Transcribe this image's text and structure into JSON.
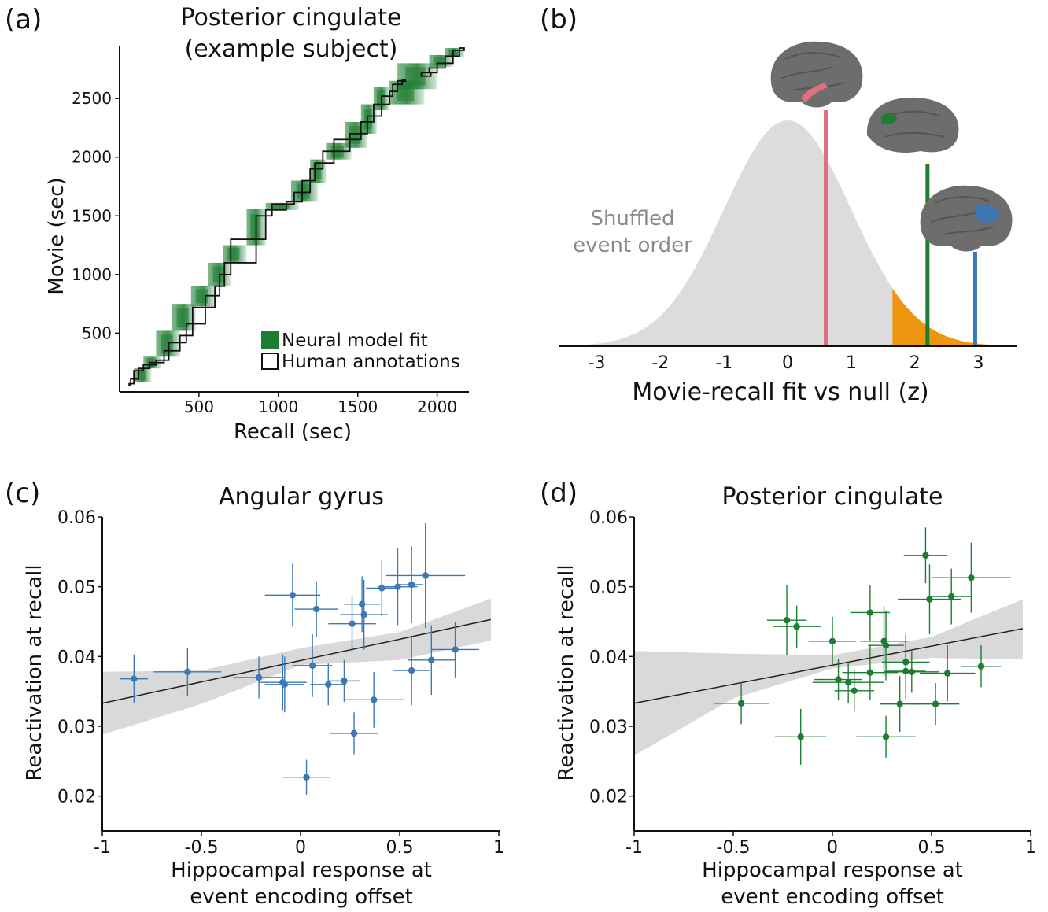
{
  "colors": {
    "green": "#1e7d32",
    "green_light": "#2e9e4a",
    "blue": "#3d78b5",
    "pink": "#e07082",
    "orange": "#f0950f",
    "gray_fill": "#dcdcdc",
    "brain": "#6d6d6d"
  },
  "chart_data": [
    {
      "id": "a",
      "panel_label": "(a)",
      "type": "heatmap",
      "title_line1": "Posterior cingulate",
      "title_line2": "(example subject)",
      "xlabel": "Recall (sec)",
      "ylabel": "Movie (sec)",
      "xlim": [
        0,
        2200
      ],
      "ylim": [
        0,
        2950
      ],
      "xticks": [
        500,
        1000,
        1500,
        2000
      ],
      "xtick_labels": [
        "500",
        "1000",
        "1500",
        "2000"
      ],
      "yticks": [
        500,
        1000,
        1500,
        2000,
        2500
      ],
      "ytick_labels": [
        "500",
        "1000",
        "1500",
        "2000",
        "2500"
      ],
      "legend": [
        "Neural model fit",
        "Human annotations"
      ],
      "legend_position": "bottom-right",
      "annotation_boxes": [
        [
          60,
          60,
          70,
          70
        ],
        [
          70,
          70,
          90,
          110
        ],
        [
          90,
          110,
          120,
          180
        ],
        [
          120,
          180,
          150,
          200
        ],
        [
          150,
          200,
          190,
          230
        ],
        [
          190,
          230,
          230,
          250
        ],
        [
          230,
          250,
          280,
          270
        ],
        [
          280,
          270,
          310,
          350
        ],
        [
          310,
          350,
          380,
          420
        ],
        [
          380,
          420,
          420,
          480
        ],
        [
          420,
          480,
          460,
          580
        ],
        [
          460,
          580,
          540,
          720
        ],
        [
          540,
          720,
          600,
          820
        ],
        [
          600,
          820,
          630,
          900
        ],
        [
          630,
          900,
          660,
          1000
        ],
        [
          660,
          1000,
          700,
          1100
        ],
        [
          700,
          1100,
          860,
          1300
        ],
        [
          860,
          1300,
          920,
          1500
        ],
        [
          920,
          1500,
          960,
          1550
        ],
        [
          960,
          1550,
          1050,
          1600
        ],
        [
          1050,
          1600,
          1100,
          1620
        ],
        [
          1100,
          1620,
          1150,
          1700
        ],
        [
          1150,
          1700,
          1200,
          1800
        ],
        [
          1200,
          1800,
          1230,
          1900
        ],
        [
          1230,
          1900,
          1280,
          1950
        ],
        [
          1280,
          1950,
          1350,
          2050
        ],
        [
          1350,
          2050,
          1450,
          2150
        ],
        [
          1450,
          2150,
          1520,
          2200
        ],
        [
          1520,
          2200,
          1560,
          2300
        ],
        [
          1560,
          2300,
          1600,
          2350
        ],
        [
          1600,
          2350,
          1650,
          2450
        ],
        [
          1650,
          2450,
          1700,
          2520
        ],
        [
          1700,
          2520,
          1720,
          2560
        ],
        [
          1720,
          2560,
          1750,
          2620
        ],
        [
          1750,
          2620,
          1780,
          2650
        ],
        [
          1780,
          2650,
          1800,
          2660
        ],
        [
          1900,
          2690,
          1960,
          2720
        ],
        [
          1950,
          2720,
          2000,
          2760
        ],
        [
          2000,
          2760,
          2050,
          2800
        ],
        [
          2050,
          2800,
          2100,
          2860
        ],
        [
          2100,
          2860,
          2140,
          2910
        ],
        [
          2140,
          2910,
          2170,
          2930
        ]
      ],
      "fit_blocks": [
        [
          90,
          80,
          200,
          200
        ],
        [
          150,
          200,
          260,
          300
        ],
        [
          230,
          300,
          380,
          520
        ],
        [
          330,
          520,
          480,
          750
        ],
        [
          450,
          730,
          600,
          900
        ],
        [
          560,
          900,
          700,
          1100
        ],
        [
          650,
          1100,
          800,
          1250
        ],
        [
          800,
          1250,
          920,
          1560
        ],
        [
          920,
          1550,
          1130,
          1610
        ],
        [
          1080,
          1620,
          1250,
          1800
        ],
        [
          1200,
          1780,
          1300,
          1980
        ],
        [
          1300,
          1980,
          1460,
          2120
        ],
        [
          1420,
          2080,
          1560,
          2300
        ],
        [
          1520,
          2200,
          1620,
          2450
        ],
        [
          1600,
          2400,
          1700,
          2600
        ],
        [
          1700,
          2450,
          1920,
          2650
        ],
        [
          1750,
          2580,
          2000,
          2800
        ],
        [
          1950,
          2770,
          2100,
          2870
        ],
        [
          2050,
          2850,
          2170,
          2930
        ]
      ]
    },
    {
      "id": "b",
      "panel_label": "(b)",
      "type": "area",
      "title": "",
      "xlabel": "Movie-recall fit vs null (z)",
      "ylabel": "",
      "xlim": [
        -3.6,
        3.6
      ],
      "xticks": [
        -3,
        -2,
        -1,
        0,
        1,
        2,
        3
      ],
      "xtick_labels": [
        "-3",
        "-2",
        "-1",
        "0",
        "1",
        "2",
        "3"
      ],
      "null_label_line1": "Shuffled",
      "null_label_line2": "event order",
      "significance_threshold_z": 1.65,
      "region_markers": [
        {
          "region": "hippocampus",
          "z": 0.6,
          "color": "#e07082"
        },
        {
          "region": "posterior cingulate",
          "z": 2.2,
          "color": "#1e7d32"
        },
        {
          "region": "angular gyrus",
          "z": 2.95,
          "color": "#3d78b5"
        }
      ]
    },
    {
      "id": "c",
      "panel_label": "(c)",
      "type": "scatter",
      "title": "Angular gyrus",
      "xlabel_line1": "Hippocampal response at",
      "xlabel_line2": "event encoding offset",
      "ylabel": "Reactivation at recall",
      "xlim": [
        -1,
        1
      ],
      "ylim": [
        0.015,
        0.06
      ],
      "xticks": [
        -1,
        -0.5,
        0,
        0.5,
        1
      ],
      "xtick_labels": [
        "-1",
        "-0.5",
        "0",
        "0.5",
        "1"
      ],
      "yticks": [
        0.02,
        0.03,
        0.04,
        0.05,
        0.06
      ],
      "ytick_labels": [
        "0.02",
        "0.03",
        "0.04",
        "0.05",
        "0.06"
      ],
      "fit_line": {
        "x": [
          -1,
          0.96
        ],
        "y": [
          0.0333,
          0.0453
        ]
      },
      "ci_band": {
        "x": [
          -1,
          -0.5,
          0,
          0.5,
          0.96
        ],
        "upper": [
          0.0378,
          0.038,
          0.0412,
          0.0435,
          0.0483
        ],
        "lower": [
          0.0288,
          0.0332,
          0.0388,
          0.0395,
          0.0423
        ]
      },
      "points": [
        {
          "x": -0.84,
          "y": 0.0368,
          "xerr": 0.07,
          "yerr": 0.0035
        },
        {
          "x": -0.57,
          "y": 0.0378,
          "xerr": 0.17,
          "yerr": 0.0035
        },
        {
          "x": -0.21,
          "y": 0.037,
          "xerr": 0.13,
          "yerr": 0.003
        },
        {
          "x": -0.09,
          "y": 0.0363,
          "xerr": 0.12,
          "yerr": 0.004
        },
        {
          "x": -0.08,
          "y": 0.036,
          "xerr": 0.1,
          "yerr": 0.004
        },
        {
          "x": -0.04,
          "y": 0.0488,
          "xerr": 0.14,
          "yerr": 0.0045
        },
        {
          "x": 0.03,
          "y": 0.0227,
          "xerr": 0.12,
          "yerr": 0.0025
        },
        {
          "x": 0.06,
          "y": 0.0387,
          "xerr": 0.1,
          "yerr": 0.0045
        },
        {
          "x": 0.08,
          "y": 0.0468,
          "xerr": 0.11,
          "yerr": 0.004
        },
        {
          "x": 0.14,
          "y": 0.036,
          "xerr": 0.09,
          "yerr": 0.003
        },
        {
          "x": 0.22,
          "y": 0.0365,
          "xerr": 0.08,
          "yerr": 0.003
        },
        {
          "x": 0.26,
          "y": 0.0447,
          "xerr": 0.12,
          "yerr": 0.004
        },
        {
          "x": 0.27,
          "y": 0.029,
          "xerr": 0.12,
          "yerr": 0.003
        },
        {
          "x": 0.31,
          "y": 0.0475,
          "xerr": 0.09,
          "yerr": 0.004
        },
        {
          "x": 0.32,
          "y": 0.046,
          "xerr": 0.12,
          "yerr": 0.005
        },
        {
          "x": 0.37,
          "y": 0.0338,
          "xerr": 0.15,
          "yerr": 0.004
        },
        {
          "x": 0.41,
          "y": 0.0498,
          "xerr": 0.08,
          "yerr": 0.004
        },
        {
          "x": 0.49,
          "y": 0.05,
          "xerr": 0.1,
          "yerr": 0.0055
        },
        {
          "x": 0.56,
          "y": 0.038,
          "xerr": 0.09,
          "yerr": 0.005
        },
        {
          "x": 0.56,
          "y": 0.0503,
          "xerr": 0.06,
          "yerr": 0.0055
        },
        {
          "x": 0.63,
          "y": 0.0516,
          "xerr": 0.2,
          "yerr": 0.0075
        },
        {
          "x": 0.66,
          "y": 0.0395,
          "xerr": 0.12,
          "yerr": 0.005
        },
        {
          "x": 0.78,
          "y": 0.041,
          "xerr": 0.12,
          "yerr": 0.004
        }
      ]
    },
    {
      "id": "d",
      "panel_label": "(d)",
      "type": "scatter",
      "title": "Posterior cingulate",
      "xlabel_line1": "Hippocampal response at",
      "xlabel_line2": "event encoding offset",
      "ylabel": "Reactivation at recall",
      "xlim": [
        -1,
        1
      ],
      "ylim": [
        0.015,
        0.06
      ],
      "xticks": [
        -1,
        -0.5,
        0,
        0.5,
        1
      ],
      "xtick_labels": [
        "-1",
        "-0.5",
        "0",
        "0.5",
        "1"
      ],
      "yticks": [
        0.02,
        0.03,
        0.04,
        0.05,
        0.06
      ],
      "ytick_labels": [
        "0.02",
        "0.03",
        "0.04",
        "0.05",
        "0.06"
      ],
      "fit_line": {
        "x": [
          -1,
          0.96
        ],
        "y": [
          0.0333,
          0.044
        ]
      },
      "ci_band": {
        "x": [
          -1,
          -0.5,
          0,
          0.5,
          0.96
        ],
        "upper": [
          0.0408,
          0.0404,
          0.0402,
          0.0428,
          0.0482
        ],
        "lower": [
          0.0258,
          0.034,
          0.0383,
          0.0398,
          0.0396
        ]
      },
      "points": [
        {
          "x": -0.46,
          "y": 0.0333,
          "xerr": 0.14,
          "yerr": 0.003
        },
        {
          "x": -0.23,
          "y": 0.0452,
          "xerr": 0.1,
          "yerr": 0.005
        },
        {
          "x": -0.18,
          "y": 0.0443,
          "xerr": 0.12,
          "yerr": 0.003
        },
        {
          "x": -0.16,
          "y": 0.0285,
          "xerr": 0.13,
          "yerr": 0.004
        },
        {
          "x": 0.0,
          "y": 0.0422,
          "xerr": 0.12,
          "yerr": 0.0035
        },
        {
          "x": 0.03,
          "y": 0.0367,
          "xerr": 0.12,
          "yerr": 0.003
        },
        {
          "x": 0.08,
          "y": 0.0363,
          "xerr": 0.18,
          "yerr": 0.003
        },
        {
          "x": 0.11,
          "y": 0.0351,
          "xerr": 0.1,
          "yerr": 0.003
        },
        {
          "x": 0.19,
          "y": 0.0463,
          "xerr": 0.1,
          "yerr": 0.004
        },
        {
          "x": 0.19,
          "y": 0.0377,
          "xerr": 0.14,
          "yerr": 0.004
        },
        {
          "x": 0.26,
          "y": 0.0422,
          "xerr": 0.12,
          "yerr": 0.005
        },
        {
          "x": 0.27,
          "y": 0.0416,
          "xerr": 0.09,
          "yerr": 0.005
        },
        {
          "x": 0.27,
          "y": 0.0285,
          "xerr": 0.15,
          "yerr": 0.003
        },
        {
          "x": 0.34,
          "y": 0.0332,
          "xerr": 0.1,
          "yerr": 0.004
        },
        {
          "x": 0.37,
          "y": 0.0392,
          "xerr": 0.12,
          "yerr": 0.004
        },
        {
          "x": 0.37,
          "y": 0.0379,
          "xerr": 0.1,
          "yerr": 0.004
        },
        {
          "x": 0.4,
          "y": 0.0378,
          "xerr": 0.14,
          "yerr": 0.003
        },
        {
          "x": 0.47,
          "y": 0.0545,
          "xerr": 0.11,
          "yerr": 0.004
        },
        {
          "x": 0.49,
          "y": 0.0482,
          "xerr": 0.16,
          "yerr": 0.005
        },
        {
          "x": 0.52,
          "y": 0.0332,
          "xerr": 0.12,
          "yerr": 0.003
        },
        {
          "x": 0.58,
          "y": 0.0376,
          "xerr": 0.14,
          "yerr": 0.004
        },
        {
          "x": 0.6,
          "y": 0.0486,
          "xerr": 0.1,
          "yerr": 0.004
        },
        {
          "x": 0.7,
          "y": 0.0513,
          "xerr": 0.2,
          "yerr": 0.005
        },
        {
          "x": 0.75,
          "y": 0.0386,
          "xerr": 0.1,
          "yerr": 0.003
        }
      ]
    }
  ]
}
